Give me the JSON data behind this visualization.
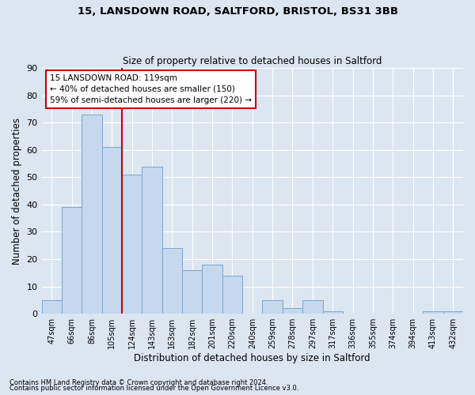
{
  "title_line1": "15, LANSDOWN ROAD, SALTFORD, BRISTOL, BS31 3BB",
  "title_line2": "Size of property relative to detached houses in Saltford",
  "xlabel": "Distribution of detached houses by size in Saltford",
  "ylabel": "Number of detached properties",
  "footnote1": "Contains HM Land Registry data © Crown copyright and database right 2024.",
  "footnote2": "Contains public sector information licensed under the Open Government Licence v3.0.",
  "categories": [
    "47sqm",
    "66sqm",
    "86sqm",
    "105sqm",
    "124sqm",
    "143sqm",
    "163sqm",
    "182sqm",
    "201sqm",
    "220sqm",
    "240sqm",
    "259sqm",
    "278sqm",
    "297sqm",
    "317sqm",
    "336sqm",
    "355sqm",
    "374sqm",
    "394sqm",
    "413sqm",
    "432sqm"
  ],
  "values": [
    5,
    39,
    73,
    61,
    51,
    54,
    24,
    16,
    18,
    14,
    0,
    5,
    2,
    5,
    1,
    0,
    0,
    0,
    0,
    1,
    1
  ],
  "bar_color": "#c5d8ee",
  "bar_edge_color": "#7ba7d0",
  "background_color": "#dce6f1",
  "annotation_box_text": "15 LANSDOWN ROAD: 119sqm\n← 40% of detached houses are smaller (150)\n59% of semi-detached houses are larger (220) →",
  "vline_x_index": 4,
  "vline_color": "#cc0000",
  "ylim": [
    0,
    90
  ],
  "yticks": [
    0,
    10,
    20,
    30,
    40,
    50,
    60,
    70,
    80,
    90
  ],
  "grid_color": "#ffffff",
  "annotation_box_color": "#cc0000"
}
